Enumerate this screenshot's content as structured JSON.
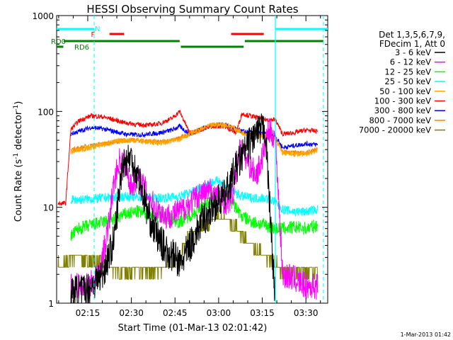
{
  "chart_data": {
    "type": "line",
    "title": "HESSI Observing Summary Count Rates",
    "xlabel": "Start Time (01-Mar-13 02:01:42)",
    "ylabel_main": "Count Rate (s",
    "ylabel_sup1": "-1",
    "ylabel_mid": " detector",
    "ylabel_sup2": "-1",
    "ylabel_end": ")",
    "yscale": "log",
    "ylim": [
      1,
      1000
    ],
    "xlim_minutes": [
      4.3,
      97.5
    ],
    "x_ticks": [
      {
        "label": "02:15",
        "minute": 15
      },
      {
        "label": "02:30",
        "minute": 30
      },
      {
        "label": "02:45",
        "minute": 45
      },
      {
        "label": "03:00",
        "minute": 60
      },
      {
        "label": "03:15",
        "minute": 75
      },
      {
        "label": "03:30",
        "minute": 90
      }
    ],
    "y_ticks": [
      {
        "label": "1",
        "value": 1
      },
      {
        "label": "10",
        "value": 10
      },
      {
        "label": "100",
        "value": 100
      },
      {
        "label": "1000",
        "value": 1000
      }
    ],
    "legend_header": [
      "Det 1,3,5,6,7,9,",
      "FDecim 1, Att 0"
    ],
    "series": [
      {
        "name": "3 - 6 keV",
        "color": "#000000",
        "x": [
          9.2,
          15,
          20,
          24,
          27,
          30,
          33,
          36,
          39,
          42,
          45,
          46.6,
          48,
          51,
          54,
          57,
          59,
          62,
          66,
          69,
          72,
          76,
          79.5
        ],
        "y": [
          1.3,
          1.4,
          2.0,
          4.5,
          30.0,
          33.0,
          18.0,
          8.0,
          5.0,
          3.5,
          3.0,
          2.5,
          3.0,
          4.5,
          7.0,
          9.0,
          11.0,
          13.0,
          26.0,
          38.0,
          55.0,
          68.0,
          1.0
        ]
      },
      {
        "name": "6 - 12 keV",
        "color": "#ff00ff",
        "x": [
          9.2,
          15,
          19,
          22,
          24,
          26,
          28,
          30,
          32,
          35,
          38,
          42,
          46.6,
          50,
          54,
          57,
          60,
          63,
          65,
          67,
          69,
          71,
          73,
          75,
          77,
          79.5,
          82,
          86,
          90,
          94
        ],
        "y": [
          1.5,
          1.5,
          2.0,
          6.0,
          18.0,
          32.0,
          28.0,
          16.0,
          21.0,
          15.0,
          10.0,
          8.0,
          9.0,
          11.0,
          14.0,
          15.0,
          13.0,
          11.0,
          14.0,
          40.0,
          35.0,
          26.0,
          22.0,
          33.0,
          62.0,
          55.0,
          2.0,
          1.8,
          1.5,
          1.5
        ]
      },
      {
        "name": "12 - 25 keV",
        "color": "#00ff00",
        "x": [
          9.2,
          12,
          16,
          20,
          24,
          28,
          32,
          36,
          40,
          44,
          46.6,
          48,
          52,
          56,
          60,
          63,
          66,
          68,
          72,
          76,
          79.5,
          82,
          86,
          90,
          94
        ],
        "y": [
          5.0,
          6.0,
          6.5,
          7.0,
          7.5,
          8.5,
          9.0,
          8.5,
          8.0,
          7.5,
          7.0,
          7.5,
          9.0,
          11.0,
          13.0,
          12.5,
          10.0,
          8.0,
          7.0,
          6.5,
          6.0,
          6.0,
          6.2,
          6.0,
          6.5
        ]
      },
      {
        "name": "25 - 50 keV",
        "color": "#00ffff",
        "x": [
          9.2,
          12,
          16,
          20,
          24,
          28,
          32,
          36,
          40,
          44,
          46.6,
          48,
          52,
          56,
          60,
          63,
          66,
          68,
          72,
          76,
          79.5,
          82,
          86,
          90,
          94
        ],
        "y": [
          12.0,
          12.0,
          12.2,
          12.5,
          12.8,
          13.0,
          12.8,
          12.5,
          12.5,
          12.8,
          13.0,
          13.5,
          15.0,
          17.5,
          19.0,
          17.0,
          14.0,
          13.0,
          12.5,
          12.5,
          11.5,
          9.5,
          9.0,
          9.0,
          9.5
        ]
      },
      {
        "name": "50 - 100 keV",
        "color": "#ffa500",
        "x": [
          9.2,
          16,
          20,
          24,
          28,
          32,
          36,
          40,
          44,
          46.6,
          50,
          54,
          58,
          62,
          66,
          68,
          72,
          76,
          79.5,
          82,
          86,
          90,
          94
        ],
        "y": [
          38.0,
          42.0,
          45.0,
          48.0,
          50.0,
          50.0,
          48.0,
          47.0,
          49.0,
          52.0,
          58.0,
          65.0,
          72.0,
          73.0,
          66.0,
          60.0,
          58.0,
          56.0,
          52.0,
          37.0,
          36.0,
          36.0,
          39.0
        ]
      },
      {
        "name": "100 - 300 keV",
        "color": "#ff0000",
        "x": [
          4.8,
          7.4,
          9.2,
          12,
          16,
          20,
          24,
          28,
          32,
          36,
          40,
          44,
          46.6,
          50,
          54,
          58,
          62,
          66,
          68,
          72,
          76,
          79.5,
          82,
          86,
          90,
          94
        ],
        "y": [
          11.0,
          11.0,
          65.0,
          80.0,
          90.0,
          88.0,
          82.0,
          76.0,
          73.0,
          72.0,
          75.0,
          85.0,
          100.0,
          60.0,
          65.0,
          70.0,
          70.0,
          60.0,
          95.0,
          88.0,
          82.0,
          82.0,
          58.0,
          60.0,
          64.0,
          62.0
        ]
      },
      {
        "name": "300 - 800 keV",
        "color": "#0000ff",
        "x": [
          9.2,
          12,
          16,
          20,
          24,
          28,
          32,
          36,
          40,
          44,
          46.6,
          50,
          54,
          58,
          62,
          66,
          68,
          72,
          76,
          79.5,
          82,
          86,
          90,
          94
        ],
        "y": [
          58.0,
          62.0,
          68.0,
          66.0,
          62.0,
          58.0,
          57.0,
          58.0,
          60.0,
          64.0,
          70.0,
          58.0,
          66.0,
          72.0,
          73.0,
          65.0,
          62.0,
          60.0,
          58.0,
          55.0,
          42.0,
          44.0,
          46.0,
          45.0
        ]
      },
      {
        "name": "800 - 7000 keV",
        "color": "#ff8000",
        "x": [
          9.2,
          16,
          20,
          24,
          28,
          32,
          36,
          40,
          44,
          46.6,
          50,
          54,
          58,
          62,
          66,
          68,
          72,
          76,
          79.5,
          82,
          86,
          90,
          94
        ],
        "y": [
          40.0,
          44.0,
          46.0,
          48.0,
          50.0,
          50.0,
          49.0,
          48.0,
          50.0,
          53.0,
          58.0,
          65.0,
          72.0,
          73.0,
          66.0,
          60.0,
          58.0,
          56.0,
          52.0,
          38.0,
          37.0,
          37.0,
          40.0
        ]
      },
      {
        "name": "7000 - 20000 keV",
        "color": "#808000",
        "x": [
          4.8,
          7.4,
          9.2,
          12,
          16,
          20,
          24,
          28,
          32,
          36,
          40,
          44,
          46.6,
          48,
          52,
          56,
          60,
          63,
          66,
          68,
          72,
          76,
          79.5,
          82,
          86,
          90,
          94
        ],
        "y": [
          2.5,
          2.5,
          3.0,
          3.0,
          2.7,
          2.5,
          2.3,
          2.2,
          2.1,
          2.2,
          2.3,
          2.6,
          3.0,
          4.0,
          5.5,
          7.0,
          8.0,
          7.5,
          6.0,
          5.0,
          3.8,
          3.0,
          2.5,
          2.2,
          2.1,
          2.1,
          2.2
        ]
      }
    ],
    "flag_markers": [
      {
        "label": "N",
        "color": "#00ffff",
        "minute": 17.2
      },
      {
        "label": "F",
        "color": "#ff0000",
        "minute": 16.6
      }
    ],
    "flag_labels": [
      {
        "label": "RD0",
        "color": "#008000"
      },
      {
        "label": "RD6",
        "color": "#008000"
      }
    ],
    "footer_date": "1-Mar-2013 01:42"
  }
}
